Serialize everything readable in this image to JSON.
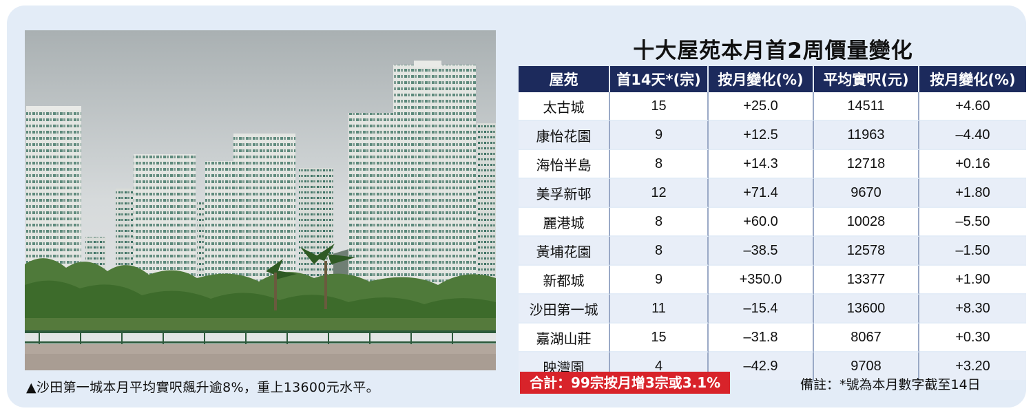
{
  "photo": {
    "caption": "▲沙田第一城本月平均實呎飆升逾8%，重上13600元水平。"
  },
  "table": {
    "title": "十大屋苑本月首2周價量變化",
    "headers": [
      "屋苑",
      "首14天*(宗)",
      "按月變化(%)",
      "平均實呎(元)",
      "按月變化(%)"
    ],
    "rows": [
      {
        "estate": "太古城",
        "deals": "15",
        "deals_change": "+25.0",
        "price": "14511",
        "price_change": "+4.60"
      },
      {
        "estate": "康怡花園",
        "deals": "9",
        "deals_change": "+12.5",
        "price": "11963",
        "price_change": "–4.40"
      },
      {
        "estate": "海怡半島",
        "deals": "8",
        "deals_change": "+14.3",
        "price": "12718",
        "price_change": "+0.16"
      },
      {
        "estate": "美孚新邨",
        "deals": "12",
        "deals_change": "+71.4",
        "price": "9670",
        "price_change": "+1.80"
      },
      {
        "estate": "麗港城",
        "deals": "8",
        "deals_change": "+60.0",
        "price": "10028",
        "price_change": "–5.50"
      },
      {
        "estate": "黃埔花園",
        "deals": "8",
        "deals_change": "–38.5",
        "price": "12578",
        "price_change": "–1.50"
      },
      {
        "estate": "新都城",
        "deals": "9",
        "deals_change": "+350.0",
        "price": "13377",
        "price_change": "+1.90"
      },
      {
        "estate": "沙田第一城",
        "deals": "11",
        "deals_change": "–15.4",
        "price": "13600",
        "price_change": "+8.30"
      },
      {
        "estate": "嘉湖山莊",
        "deals": "15",
        "deals_change": "–31.8",
        "price": "8067",
        "price_change": "+0.30"
      },
      {
        "estate": "映灣園",
        "deals": "4",
        "deals_change": "–42.9",
        "price": "9708",
        "price_change": "+3.20"
      }
    ],
    "total": "合計：99宗按月增3宗或3.1%",
    "note": "備註：*號為本月數字截至14日"
  },
  "colors": {
    "panel_bg": "#e3ecf7",
    "header_bg": "#1c2a5c",
    "total_bg": "#d8232a"
  }
}
